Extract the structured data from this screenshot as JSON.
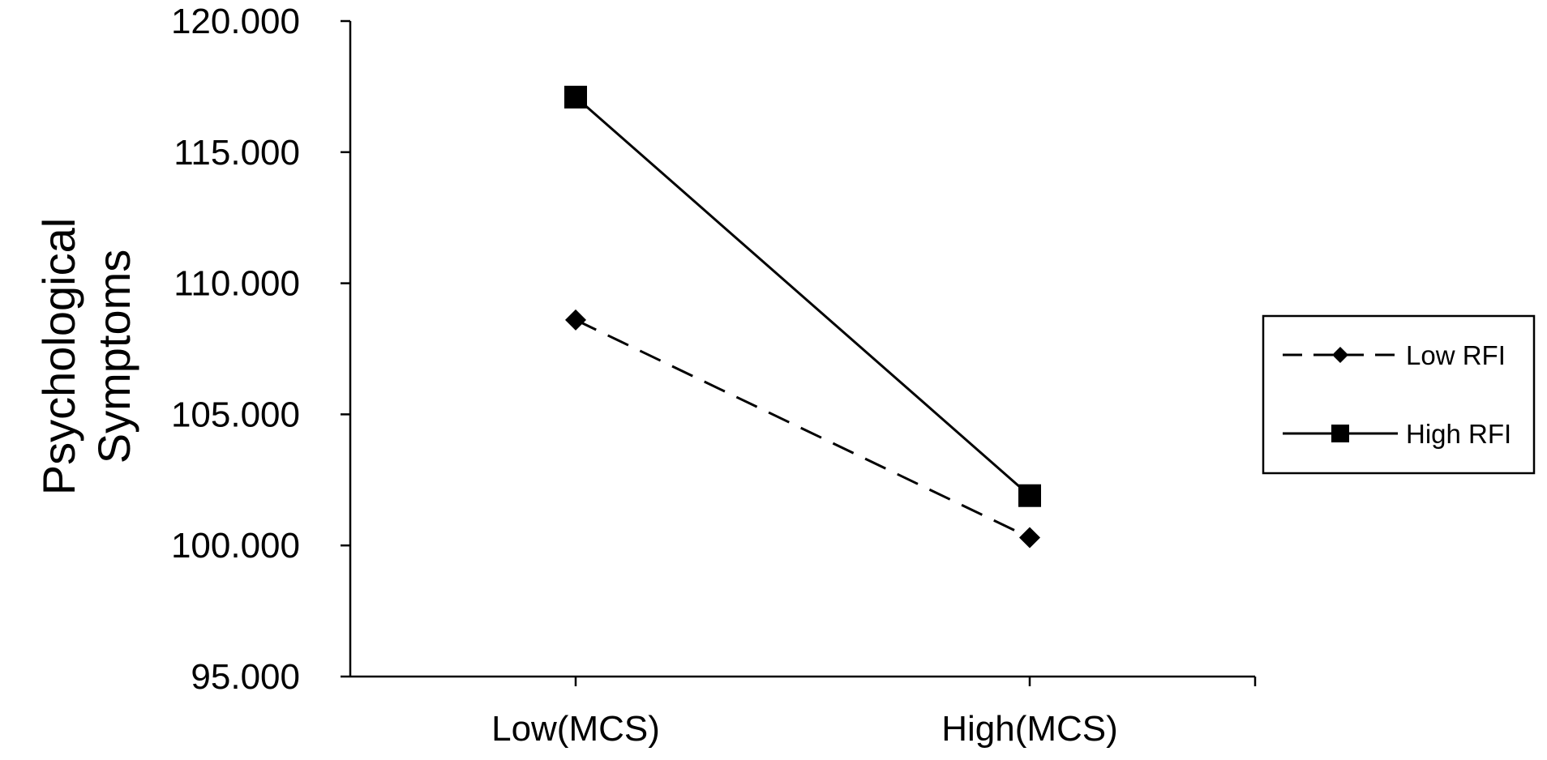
{
  "chart_data": {
    "type": "line",
    "title": "",
    "xlabel": "",
    "ylabel": [
      "Psychological",
      "Symptoms"
    ],
    "categories": [
      "Low(MCS)",
      "High(MCS)"
    ],
    "ylim": [
      95,
      120
    ],
    "yticks": [
      {
        "value": 95,
        "label": "95.000"
      },
      {
        "value": 100,
        "label": "100.000"
      },
      {
        "value": 105,
        "label": "105.000"
      },
      {
        "value": 110,
        "label": "110.000"
      },
      {
        "value": 115,
        "label": "115.000"
      },
      {
        "value": 120,
        "label": "120.000"
      }
    ],
    "grid": false,
    "legend_position": "right",
    "series": [
      {
        "name": "Low RFI",
        "values": [
          108.6,
          100.3
        ],
        "marker": "diamond",
        "line_style": "dashed",
        "color": "#000000"
      },
      {
        "name": "High RFI",
        "values": [
          117.1,
          101.9
        ],
        "marker": "square",
        "line_style": "solid",
        "color": "#000000"
      }
    ]
  }
}
